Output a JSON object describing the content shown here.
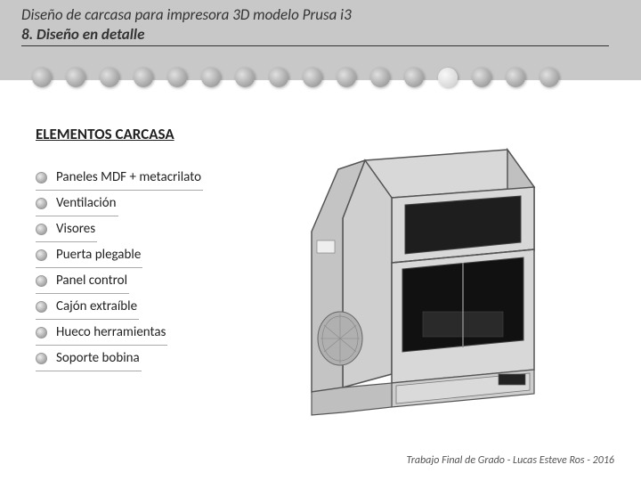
{
  "header": {
    "title": "Diseño de carcasa para impresora 3D modelo Prusa i3",
    "subtitle": "8. Diseño en detalle",
    "dot_count": 16,
    "light_dot_index": 12
  },
  "section": {
    "title": "ELEMENTOS CARCASA",
    "items": [
      "Paneles MDF + metacrilato",
      "Ventilación",
      "Visores",
      "Puerta plegable",
      "Panel control",
      "Cajón extraíble",
      "Hueco herramientas",
      "Soporte bobina"
    ]
  },
  "printer": {
    "body_fill": "#d8d8d8",
    "body_stroke": "#555",
    "window_fill": "#222",
    "vent_fill": "#999"
  },
  "footer": {
    "text": "Trabajo Final de Grado - Lucas Esteve Ros - 2016"
  }
}
